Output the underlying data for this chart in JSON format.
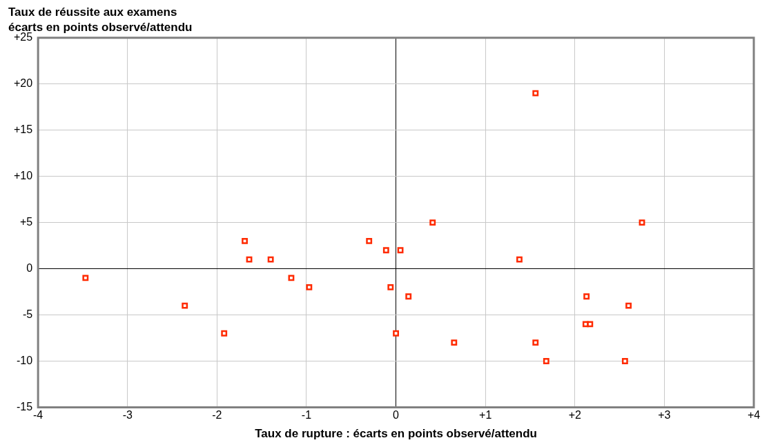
{
  "chart_data": {
    "type": "scatter",
    "title": "Taux de réussite aux examens",
    "subtitle": "écarts en points observé/attendu",
    "xlabel": "Taux de rupture : écarts en points observé/attendu",
    "x": [
      -3.47,
      -2.36,
      -1.92,
      -1.69,
      -1.64,
      -1.4,
      -1.17,
      -0.97,
      -0.3,
      -0.11,
      0.05,
      -0.06,
      0.14,
      0.0,
      0.41,
      0.65,
      1.38,
      1.56,
      1.56,
      1.68,
      2.13,
      2.12,
      2.17,
      2.56,
      2.6,
      2.75
    ],
    "values": [
      -1,
      -4,
      -7,
      3,
      1,
      1,
      -1,
      -2,
      3,
      2,
      2,
      -2,
      -3,
      -7,
      5,
      -8,
      1,
      19,
      -8,
      -10,
      -3,
      -6,
      -6,
      -10,
      -4,
      5
    ],
    "color": "#ff2a00",
    "marker": "square",
    "grid": true,
    "xlim": [
      -4,
      4
    ],
    "xticks": [
      -4,
      -3,
      -2,
      -1,
      0,
      {
        "value": 1,
        "label": "+1"
      },
      {
        "value": 2,
        "label": "+2"
      },
      {
        "value": 3,
        "label": "+3"
      },
      {
        "value": 4,
        "label": "+4"
      }
    ],
    "ylim": [
      -15,
      25
    ],
    "yticks": [
      -15,
      -10,
      -5,
      0,
      {
        "value": 5,
        "label": "+5"
      },
      {
        "value": 10,
        "label": "+10"
      },
      {
        "value": 15,
        "label": "+15"
      },
      {
        "value": 20,
        "label": "+20"
      },
      {
        "value": 25,
        "label": "+25"
      }
    ]
  }
}
